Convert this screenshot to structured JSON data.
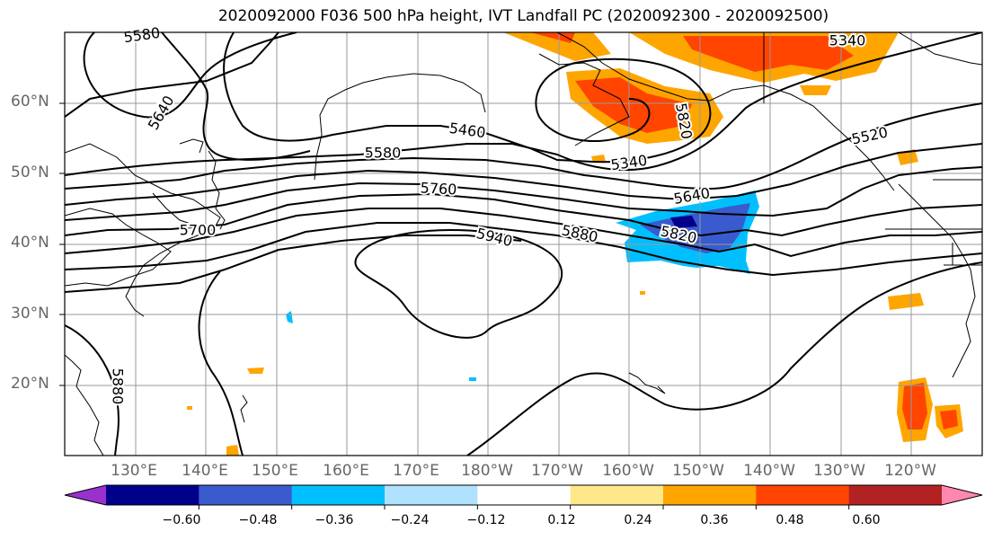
{
  "title": "2020092000 F036 500 hPa height, IVT Landfall PC (2020092300 - 2020092500)",
  "lat_labels": [
    "60°N",
    "50°N",
    "40°N",
    "30°N",
    "20°N"
  ],
  "lon_labels": [
    "130°E",
    "140°E",
    "150°E",
    "160°E",
    "170°E",
    "180°W",
    "170°W",
    "160°W",
    "150°W",
    "140°W",
    "130°W",
    "120°W"
  ],
  "colorbar": {
    "ticks": [
      "−0.60",
      "−0.48",
      "−0.36",
      "−0.24",
      "−0.12",
      "0.12",
      "0.24",
      "0.36",
      "0.48",
      "0.60"
    ],
    "colors": [
      "#9932cc",
      "#00008b",
      "#3a5bcd",
      "#00bfff",
      "#b0e2ff",
      "#ffffff",
      "#ffe88a",
      "#ffa500",
      "#ff4500",
      "#b22222",
      "#ff88b0"
    ]
  },
  "contour_labels": [
    "5580",
    "5640",
    "5460",
    "5580",
    "5340",
    "5760",
    "5700",
    "5940",
    "5880",
    "5640",
    "5820",
    "5340",
    "5520",
    "5880",
    "5820"
  ]
}
